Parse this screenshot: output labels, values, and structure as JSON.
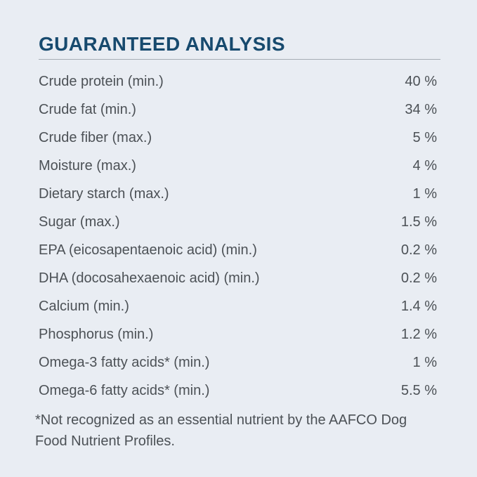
{
  "title": "GUARANTEED ANALYSIS",
  "rows": [
    {
      "label": "Crude protein (min.)",
      "value": "40 %"
    },
    {
      "label": "Crude fat (min.)",
      "value": "34 %"
    },
    {
      "label": "Crude fiber (max.)",
      "value": "5 %"
    },
    {
      "label": "Moisture (max.)",
      "value": "4 %"
    },
    {
      "label": "Dietary starch (max.)",
      "value": "1 %"
    },
    {
      "label": "Sugar (max.)",
      "value": "1.5 %"
    },
    {
      "label": "EPA (eicosapentaenoic acid) (min.)",
      "value": "0.2 %"
    },
    {
      "label": "DHA (docosahexaenoic acid) (min.)",
      "value": "0.2 %"
    },
    {
      "label": "Calcium (min.)",
      "value": "1.4 %"
    },
    {
      "label": "Phosphorus (min.)",
      "value": "1.2 %"
    },
    {
      "label": "Omega-3 fatty acids* (min.)",
      "value": "1 %"
    },
    {
      "label": "Omega-6 fatty acids* (min.)",
      "value": "5.5 %"
    }
  ],
  "footnote_lines": [
    "*Not recognized as an essential nutrient by the AAFCO Dog",
    "Food Nutrient Profiles."
  ],
  "colors": {
    "background": "#e9edf3",
    "title": "#174a6e",
    "text": "#4c5156",
    "divider": "#a6adb5"
  }
}
